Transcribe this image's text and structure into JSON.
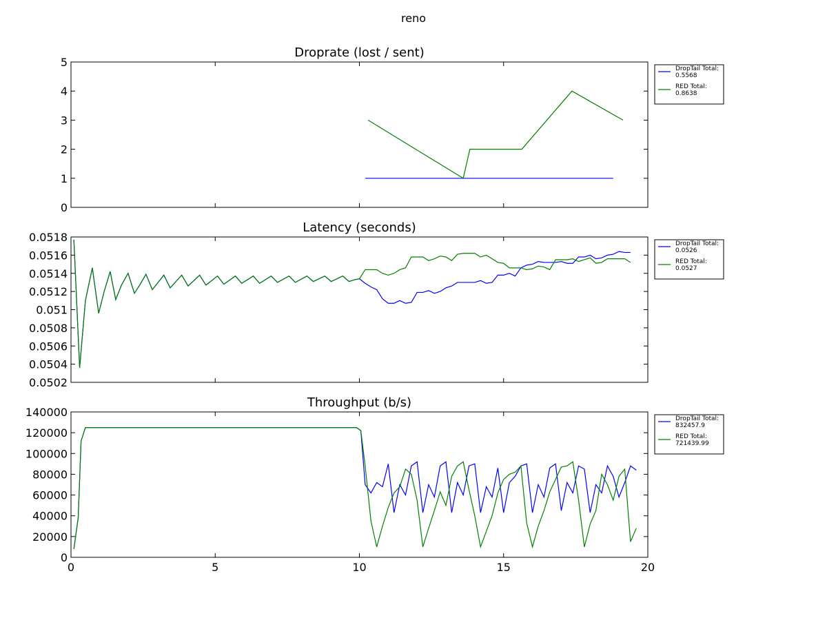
{
  "title": "reno",
  "chart_data": [
    {
      "type": "line",
      "title": "Droprate (lost / sent)",
      "xlim": [
        0,
        20
      ],
      "xticks": [
        0,
        5,
        10,
        15,
        20
      ],
      "ylim": [
        0,
        5
      ],
      "yticks": [
        0,
        1,
        2,
        3,
        4,
        5
      ],
      "legend": "outside-right",
      "series": [
        {
          "name": "DropTail Total:\n0.5568",
          "color": "#0000ff",
          "x": [
            10.2,
            18.8
          ],
          "values": [
            1,
            1
          ]
        },
        {
          "name": "RED Total:\n0.8638",
          "color": "#008000",
          "x": [
            10.3,
            13.6,
            13.83,
            15.63,
            17.37,
            19.14
          ],
          "values": [
            3,
            1,
            2,
            2,
            4,
            3
          ]
        }
      ]
    },
    {
      "type": "line",
      "title": "Latency (seconds)",
      "xlim": [
        0,
        20
      ],
      "xticks": [
        0,
        5,
        10,
        15,
        20
      ],
      "ylim": [
        0.0502,
        0.0518
      ],
      "yticks": [
        0.0502,
        0.0504,
        0.0506,
        0.0508,
        0.051,
        0.0512,
        0.0514,
        0.0516,
        0.0518
      ],
      "legend": "outside-right",
      "x": [
        0.1,
        0.3,
        0.5,
        0.74,
        0.96,
        1.15,
        1.36,
        1.55,
        1.75,
        1.98,
        2.2,
        2.4,
        2.6,
        2.82,
        3.22,
        3.44,
        3.84,
        4.06,
        4.46,
        4.68,
        5.08,
        5.3,
        5.7,
        5.92,
        6.32,
        6.54,
        6.94,
        7.16,
        7.56,
        7.78,
        8.18,
        8.4,
        8.8,
        9.02,
        9.42,
        9.64,
        9.84,
        10.0,
        10.2,
        10.4,
        10.6,
        10.8,
        11.0,
        11.2,
        11.4,
        11.6,
        11.8,
        12.0,
        12.2,
        12.4,
        12.6,
        12.8,
        13.0,
        13.2,
        13.4,
        13.6,
        13.8,
        14.0,
        14.2,
        14.4,
        14.6,
        14.8,
        15.0,
        15.2,
        15.4,
        15.6,
        15.8,
        16.0,
        16.2,
        16.4,
        16.6,
        16.8,
        17.0,
        17.2,
        17.4,
        17.6,
        17.8,
        18.0,
        18.2,
        18.4,
        18.6,
        18.8,
        19.0,
        19.2,
        19.4,
        19.6
      ],
      "series": [
        {
          "name": "DropTail Total:\n0.0526",
          "color": "#0000ff",
          "values": [
            0.05177,
            0.05036,
            0.0511,
            0.05146,
            0.05096,
            0.0512,
            0.05142,
            0.05111,
            0.05127,
            0.0514,
            0.05118,
            0.05128,
            0.05139,
            0.05122,
            0.05138,
            0.05124,
            0.05138,
            0.05126,
            0.05138,
            0.05127,
            0.05137,
            0.05128,
            0.05137,
            0.05129,
            0.05137,
            0.05129,
            0.05137,
            0.0513,
            0.05137,
            0.0513,
            0.05137,
            0.05131,
            0.05137,
            0.05131,
            0.05137,
            0.05131,
            0.05133,
            0.05134,
            0.05129,
            0.05125,
            0.05122,
            0.05112,
            0.05107,
            0.05107,
            0.0511,
            0.05107,
            0.05108,
            0.05119,
            0.05119,
            0.05121,
            0.05118,
            0.0512,
            0.05124,
            0.05126,
            0.0513,
            0.0513,
            0.0513,
            0.0513,
            0.05132,
            0.05129,
            0.0513,
            0.05138,
            0.05138,
            0.0514,
            0.05137,
            0.05146,
            0.05149,
            0.0515,
            0.05153,
            0.05152,
            0.05152,
            0.05152,
            0.05153,
            0.05151,
            0.05151,
            0.05158,
            0.05158,
            0.0516,
            0.05156,
            0.05157,
            0.0516,
            0.05161,
            0.05164,
            0.05163,
            0.05163,
            null
          ]
        },
        {
          "name": "RED Total:\n0.0527",
          "color": "#008000",
          "values": [
            0.05177,
            0.05036,
            0.0511,
            0.05146,
            0.05096,
            0.0512,
            0.05142,
            0.05111,
            0.05127,
            0.0514,
            0.05118,
            0.05128,
            0.05139,
            0.05122,
            0.05138,
            0.05124,
            0.05138,
            0.05126,
            0.05138,
            0.05127,
            0.05137,
            0.05128,
            0.05137,
            0.05129,
            0.05137,
            0.05129,
            0.05137,
            0.0513,
            0.05137,
            0.0513,
            0.05137,
            0.05131,
            0.05137,
            0.05131,
            0.05137,
            0.05131,
            0.05133,
            0.05134,
            0.05144,
            0.05144,
            0.05144,
            0.0514,
            0.05138,
            0.0514,
            0.05144,
            0.05146,
            0.05158,
            0.05158,
            0.05158,
            0.05154,
            0.05156,
            0.05159,
            0.05158,
            0.05154,
            0.05161,
            0.05162,
            0.05162,
            0.05162,
            0.05158,
            0.0516,
            0.05156,
            0.05152,
            0.05151,
            0.05146,
            0.05146,
            0.05146,
            0.05144,
            0.05145,
            0.05148,
            0.05147,
            0.05144,
            0.05155,
            0.05155,
            0.05155,
            0.05156,
            0.05153,
            0.05155,
            0.05157,
            0.05151,
            0.05152,
            0.05156,
            0.05156,
            0.05156,
            0.05156,
            0.05152,
            null
          ]
        }
      ]
    },
    {
      "type": "line",
      "title": "Throughput (b/s)",
      "xlim": [
        0,
        20
      ],
      "xticks": [
        0,
        5,
        10,
        15,
        20
      ],
      "ylim": [
        0,
        140000
      ],
      "yticks": [
        0,
        20000,
        40000,
        60000,
        80000,
        100000,
        120000,
        140000
      ],
      "legend": "outside-right",
      "x": [
        0.1,
        0.25,
        0.35,
        0.5,
        9.9,
        10.05,
        10.2,
        10.4,
        10.6,
        10.8,
        11.0,
        11.2,
        11.4,
        11.6,
        11.8,
        12.0,
        12.2,
        12.4,
        12.6,
        12.8,
        13.0,
        13.2,
        13.4,
        13.6,
        13.8,
        14.0,
        14.2,
        14.4,
        14.6,
        14.8,
        15.0,
        15.2,
        15.4,
        15.6,
        15.8,
        16.0,
        16.2,
        16.4,
        16.6,
        16.8,
        17.0,
        17.2,
        17.4,
        17.6,
        17.8,
        18.0,
        18.2,
        18.4,
        18.6,
        18.8,
        19.0,
        19.2,
        19.4,
        19.6
      ],
      "series": [
        {
          "name": "DropTail Total:\n832457.9",
          "color": "#0000ff",
          "values": [
            8000,
            38000,
            112000,
            125000,
            125000,
            122000,
            70000,
            62000,
            72000,
            68000,
            90000,
            43000,
            70000,
            60000,
            88000,
            92000,
            43000,
            70000,
            58000,
            88000,
            92000,
            43000,
            72000,
            60000,
            88000,
            90000,
            43000,
            68000,
            58000,
            86000,
            43000,
            72000,
            78000,
            88000,
            90000,
            43000,
            70000,
            58000,
            86000,
            90000,
            45000,
            72000,
            62000,
            88000,
            85000,
            43000,
            70000,
            62000,
            88000,
            78000,
            58000,
            72000,
            88000,
            84000
          ]
        },
        {
          "name": "RED Total:\n721439.99",
          "color": "#008000",
          "values": [
            8000,
            38000,
            112000,
            125000,
            125000,
            122000,
            88000,
            35000,
            10000,
            30000,
            48000,
            62000,
            68000,
            85000,
            80000,
            55000,
            10000,
            28000,
            45000,
            63000,
            50000,
            78000,
            88000,
            92000,
            65000,
            40000,
            10000,
            25000,
            40000,
            62000,
            75000,
            80000,
            82000,
            88000,
            33000,
            10000,
            30000,
            45000,
            63000,
            75000,
            87000,
            88000,
            92000,
            55000,
            10000,
            32000,
            45000,
            80000,
            70000,
            55000,
            78000,
            85000,
            15000,
            28000
          ]
        }
      ]
    }
  ]
}
